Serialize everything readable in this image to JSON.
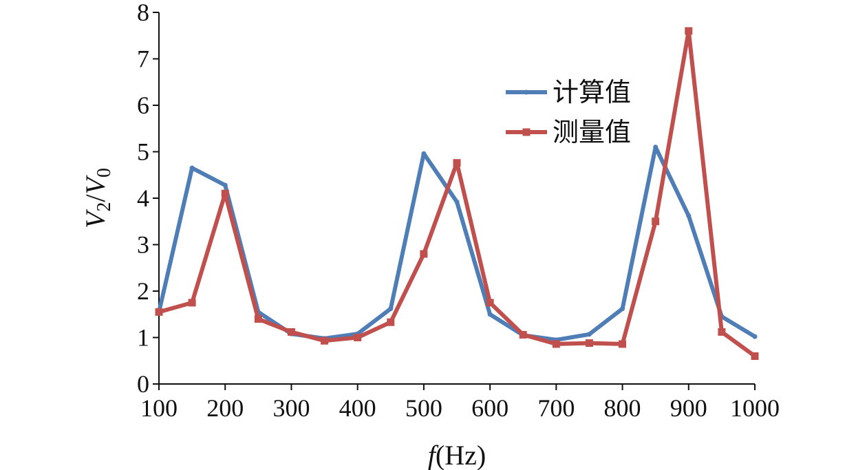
{
  "chart_data": {
    "type": "line",
    "title": "",
    "xlabel": {
      "italic": "f",
      "rest": "(Hz)"
    },
    "ylabel": {
      "v1": "V",
      "sub1": "2",
      "slash": "/",
      "v2": "V",
      "sub2": "0"
    },
    "x": [
      100,
      150,
      200,
      250,
      300,
      350,
      400,
      450,
      500,
      550,
      600,
      650,
      700,
      750,
      800,
      850,
      900,
      950,
      1000
    ],
    "xlim": [
      100,
      1000
    ],
    "ylim": [
      0,
      8
    ],
    "xticks": [
      100,
      200,
      300,
      400,
      500,
      600,
      700,
      800,
      900,
      1000
    ],
    "yticks": [
      0,
      1,
      2,
      3,
      4,
      5,
      6,
      7,
      8
    ],
    "xtick_labels": [
      "100",
      "200",
      "300",
      "400",
      "500",
      "600",
      "700",
      "800",
      "900",
      "1000"
    ],
    "ytick_labels": [
      "0",
      "1",
      "2",
      "3",
      "4",
      "5",
      "6",
      "7",
      "8"
    ],
    "grid": false,
    "legend_position": "top-right",
    "series": [
      {
        "name": "计算值",
        "color": "#4f7db5",
        "marker": "diamond",
        "values": [
          1.55,
          4.65,
          4.28,
          1.55,
          1.08,
          0.98,
          1.08,
          1.62,
          4.96,
          3.92,
          1.5,
          1.05,
          0.95,
          1.07,
          1.62,
          5.1,
          3.62,
          1.45,
          1.02
        ]
      },
      {
        "name": "测量值",
        "color": "#c0504d",
        "marker": "square",
        "values": [
          1.55,
          1.75,
          4.1,
          1.4,
          1.12,
          0.93,
          1.0,
          1.33,
          2.8,
          4.76,
          1.75,
          1.06,
          0.86,
          0.88,
          0.86,
          3.5,
          7.6,
          1.12,
          0.6
        ]
      }
    ]
  }
}
